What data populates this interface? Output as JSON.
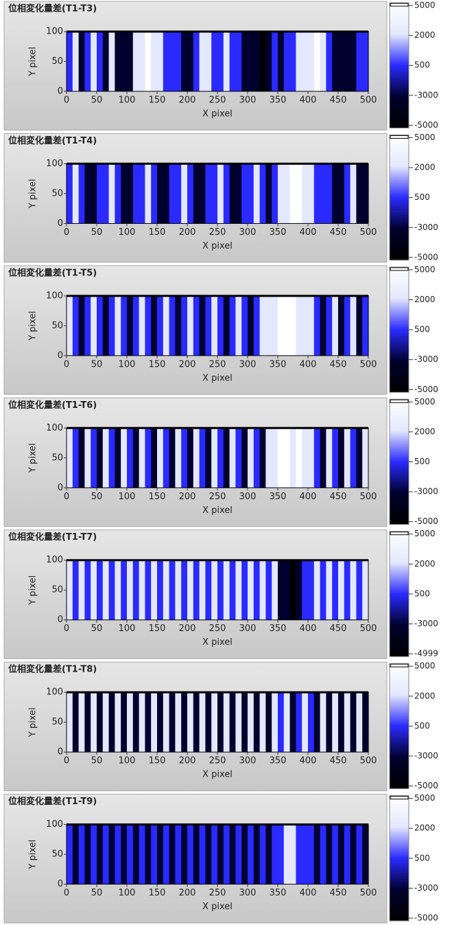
{
  "chart_data": [
    {
      "type": "heatmap",
      "title": "位相変化量差(T1-T3)",
      "x_label": "X pixel",
      "y_label": "Y pixel",
      "xlim": [
        0,
        500
      ],
      "ylim": [
        0,
        100
      ],
      "xticks": [
        0,
        50,
        100,
        150,
        200,
        250,
        300,
        350,
        400,
        450,
        500
      ],
      "yticks": [
        0,
        50,
        100
      ],
      "values": [
        500,
        2000,
        -3000,
        500,
        2000,
        500,
        -3000,
        2000,
        -3000,
        -3000,
        -3000,
        2000,
        2000,
        5000,
        2000,
        2000,
        500,
        500,
        500,
        -3000,
        -3000,
        500,
        2000,
        2000,
        500,
        500,
        2000,
        500,
        500,
        -3000,
        -3000,
        -3000,
        -5000,
        -3000,
        500,
        -3000,
        500,
        500,
        2000,
        2000,
        2000,
        5000,
        2000,
        500,
        -3000,
        -3000,
        -3000,
        -3000,
        500,
        500
      ],
      "colorbar": {
        "ticks": [
          5000,
          2000,
          500,
          -3000,
          -5000
        ],
        "colors": [
          "#ffffff",
          "#e4e8ff",
          "#2a2aff",
          "#00002e",
          "#000000"
        ]
      }
    },
    {
      "type": "heatmap",
      "title": "位相変化量差(T1-T4)",
      "x_label": "X pixel",
      "y_label": "Y pixel",
      "xlim": [
        0,
        500
      ],
      "ylim": [
        0,
        100
      ],
      "xticks": [
        0,
        50,
        100,
        150,
        200,
        250,
        300,
        350,
        400,
        450,
        500
      ],
      "yticks": [
        0,
        50,
        100
      ],
      "values": [
        500,
        2000,
        500,
        -3000,
        -3000,
        500,
        500,
        2000,
        500,
        -3000,
        -3000,
        500,
        500,
        2000,
        500,
        -3000,
        -3000,
        500,
        500,
        2000,
        500,
        -3000,
        -3000,
        500,
        500,
        2000,
        500,
        -3000,
        -3000,
        500,
        500,
        2000,
        500,
        -3000,
        500,
        2000,
        2000,
        5000,
        5000,
        2000,
        2000,
        500,
        500,
        500,
        -3000,
        -3000,
        500,
        2000,
        -3000,
        -3000
      ],
      "colorbar": {
        "ticks": [
          5000,
          2000,
          500,
          -3000,
          -5000
        ],
        "colors": [
          "#ffffff",
          "#e4e8ff",
          "#2a2aff",
          "#00002e",
          "#000000"
        ]
      }
    },
    {
      "type": "heatmap",
      "title": "位相変化量差(T1-T5)",
      "x_label": "X pixel",
      "y_label": "Y pixel",
      "xlim": [
        0,
        500
      ],
      "ylim": [
        0,
        100
      ],
      "xticks": [
        0,
        50,
        100,
        150,
        200,
        250,
        300,
        350,
        400,
        450,
        500
      ],
      "yticks": [
        0,
        50,
        100
      ],
      "values": [
        2000,
        500,
        -3000,
        500,
        2000,
        500,
        -3000,
        500,
        2000,
        500,
        -3000,
        500,
        2000,
        500,
        -3000,
        500,
        2000,
        500,
        -3000,
        500,
        2000,
        500,
        -3000,
        500,
        2000,
        500,
        -3000,
        500,
        2000,
        500,
        -3000,
        500,
        2000,
        2000,
        2000,
        5000,
        5000,
        5000,
        2000,
        2000,
        2000,
        500,
        -3000,
        500,
        2000,
        -3000,
        500,
        2000,
        -3000,
        500
      ],
      "colorbar": {
        "ticks": [
          5000,
          2000,
          500,
          -3000,
          -5000
        ],
        "colors": [
          "#ffffff",
          "#e4e8ff",
          "#2a2aff",
          "#00002e",
          "#000000"
        ]
      }
    },
    {
      "type": "heatmap",
      "title": "位相変化量差(T1-T6)",
      "x_label": "X pixel",
      "y_label": "Y pixel",
      "xlim": [
        0,
        500
      ],
      "ylim": [
        0,
        100
      ],
      "xticks": [
        0,
        50,
        100,
        150,
        200,
        250,
        300,
        350,
        400,
        450,
        500
      ],
      "yticks": [
        0,
        50,
        100
      ],
      "values": [
        2000,
        500,
        -3000,
        2000,
        500,
        -3000,
        2000,
        500,
        -3000,
        2000,
        500,
        -3000,
        2000,
        500,
        -3000,
        2000,
        500,
        -3000,
        2000,
        500,
        -3000,
        2000,
        500,
        -3000,
        2000,
        500,
        -3000,
        2000,
        500,
        -3000,
        2000,
        500,
        -3000,
        2000,
        2000,
        5000,
        5000,
        2000,
        5000,
        2000,
        2000,
        500,
        -3000,
        2000,
        500,
        -3000,
        2000,
        500,
        -3000,
        2000
      ],
      "colorbar": {
        "ticks": [
          5000,
          2000,
          500,
          -3000,
          -5000
        ],
        "colors": [
          "#ffffff",
          "#e4e8ff",
          "#2a2aff",
          "#00002e",
          "#000000"
        ]
      }
    },
    {
      "type": "heatmap",
      "title": "位相変化量差(T1-T7)",
      "x_label": "X pixel",
      "y_label": "Y pixel",
      "xlim": [
        0,
        500
      ],
      "ylim": [
        0,
        100
      ],
      "xticks": [
        0,
        50,
        100,
        150,
        200,
        250,
        300,
        350,
        400,
        450,
        500
      ],
      "yticks": [
        0,
        50,
        100
      ],
      "values": [
        2000,
        500,
        2000,
        500,
        2000,
        500,
        2000,
        500,
        2000,
        500,
        2000,
        500,
        2000,
        500,
        2000,
        500,
        2000,
        500,
        2000,
        500,
        2000,
        500,
        2000,
        500,
        2000,
        500,
        2000,
        500,
        2000,
        500,
        2000,
        500,
        2000,
        500,
        2000,
        -3000,
        -3000,
        -5000,
        -3000,
        500,
        500,
        2000,
        500,
        2000,
        500,
        2000,
        500,
        2000,
        500,
        2000
      ],
      "colorbar": {
        "ticks": [
          5000,
          2000,
          500,
          -3000,
          -4999
        ],
        "colors": [
          "#ffffff",
          "#e4e8ff",
          "#2a2aff",
          "#00002e",
          "#000000"
        ]
      }
    },
    {
      "type": "heatmap",
      "title": "位相変化量差(T1-T8)",
      "x_label": "X pixel",
      "y_label": "Y pixel",
      "xlim": [
        0,
        500
      ],
      "ylim": [
        0,
        100
      ],
      "xticks": [
        0,
        50,
        100,
        150,
        200,
        250,
        300,
        350,
        400,
        450,
        500
      ],
      "yticks": [
        0,
        50,
        100
      ],
      "values": [
        2000,
        -3000,
        2000,
        -3000,
        2000,
        -3000,
        2000,
        -3000,
        2000,
        -3000,
        2000,
        -3000,
        2000,
        -3000,
        2000,
        -3000,
        2000,
        -3000,
        2000,
        -3000,
        2000,
        -3000,
        2000,
        -3000,
        2000,
        -3000,
        2000,
        -3000,
        2000,
        -3000,
        2000,
        -3000,
        2000,
        -3000,
        2000,
        500,
        2000,
        -3000,
        500,
        2000,
        500,
        -3000,
        2000,
        -3000,
        2000,
        -3000,
        2000,
        -3000,
        2000,
        -3000
      ],
      "colorbar": {
        "ticks": [
          5000,
          2000,
          500,
          -3000,
          -5000
        ],
        "colors": [
          "#ffffff",
          "#e4e8ff",
          "#2a2aff",
          "#00002e",
          "#000000"
        ]
      }
    },
    {
      "type": "heatmap",
      "title": "位相変化量差(T1-T9)",
      "x_label": "X pixel",
      "y_label": "Y pixel",
      "xlim": [
        0,
        500
      ],
      "ylim": [
        0,
        100
      ],
      "xticks": [
        0,
        50,
        100,
        150,
        200,
        250,
        300,
        350,
        400,
        450,
        500
      ],
      "yticks": [
        0,
        50,
        100
      ],
      "values": [
        500,
        -3000,
        500,
        -3000,
        500,
        -3000,
        500,
        -3000,
        500,
        -3000,
        500,
        -3000,
        500,
        -3000,
        500,
        -3000,
        500,
        -3000,
        500,
        -3000,
        500,
        -3000,
        500,
        -3000,
        500,
        -3000,
        500,
        -3000,
        500,
        -3000,
        500,
        -3000,
        500,
        -3000,
        500,
        500,
        2000,
        2000,
        500,
        500,
        500,
        -3000,
        500,
        -3000,
        500,
        -3000,
        500,
        -3000,
        500,
        -3000
      ],
      "colorbar": {
        "ticks": [
          5000,
          2000,
          500,
          -3000,
          -5000
        ],
        "colors": [
          "#ffffff",
          "#e4e8ff",
          "#2a2aff",
          "#00002e",
          "#000000"
        ]
      }
    }
  ]
}
